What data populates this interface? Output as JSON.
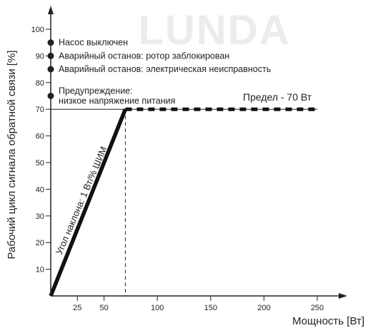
{
  "chart_data": {
    "type": "line",
    "watermark": "LUNDA",
    "xlabel": "Мощность [Вт]",
    "ylabel": "Рабочий цикл сигнала обратной связи [%]",
    "xlim": [
      0,
      250
    ],
    "ylim": [
      0,
      100
    ],
    "x_ticks": [
      25,
      50,
      100,
      150,
      200,
      250
    ],
    "y_ticks": [
      10,
      20,
      30,
      40,
      50,
      60,
      70,
      80,
      90,
      100
    ],
    "series": [
      {
        "points": [
          [
            0,
            0
          ],
          [
            70,
            70
          ]
        ],
        "style": "solid"
      },
      {
        "points": [
          [
            70,
            70
          ],
          [
            250,
            70
          ]
        ],
        "style": "dashed"
      }
    ],
    "reference_lines": {
      "vertical_dashed_x": 70,
      "horizontal_thin_y": 70
    },
    "limit_label": "Предел - 70 Вт",
    "slope_label": "Угол наклона: 1 Вт/% ШИМ",
    "status_markers": [
      {
        "y": 95,
        "label": "Насос выключен"
      },
      {
        "y": 90,
        "label": "Аварийный останов: ротор заблокирован"
      },
      {
        "y": 85,
        "label": "Аварийный останов: электрическая неисправность"
      },
      {
        "y": 75,
        "label": "Предупреждение:",
        "label2": "низкое напряжение питания"
      }
    ],
    "colors": {
      "line": "#111111",
      "axis": "#222222",
      "marker": "#222222"
    }
  }
}
